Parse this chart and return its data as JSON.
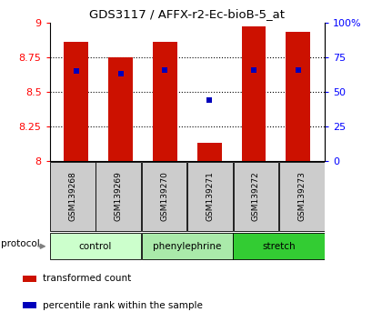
{
  "title": "GDS3117 / AFFX-r2-Ec-bioB-5_at",
  "samples": [
    "GSM139268",
    "GSM139269",
    "GSM139270",
    "GSM139271",
    "GSM139272",
    "GSM139273"
  ],
  "bar_bottom": 8.0,
  "bar_tops": [
    8.86,
    8.75,
    8.86,
    8.13,
    8.97,
    8.93
  ],
  "percentile_values": [
    8.65,
    8.63,
    8.66,
    8.44,
    8.66,
    8.66
  ],
  "ylim": [
    8.0,
    9.0
  ],
  "yticks_left": [
    8.0,
    8.25,
    8.5,
    8.75,
    9.0
  ],
  "yticks_left_labels": [
    "8",
    "8.25",
    "8.5",
    "8.75",
    "9"
  ],
  "yticks_right": [
    0,
    25,
    50,
    75,
    100
  ],
  "yticks_right_labels": [
    "0",
    "25",
    "50",
    "75",
    "100%"
  ],
  "bar_color": "#cc1100",
  "percentile_color": "#0000bb",
  "groups": [
    {
      "label": "control",
      "samples": [
        0,
        1
      ],
      "color": "#ccffcc"
    },
    {
      "label": "phenylephrine",
      "samples": [
        2,
        3
      ],
      "color": "#aaeaaa"
    },
    {
      "label": "stretch",
      "samples": [
        4,
        5
      ],
      "color": "#33cc33"
    }
  ],
  "protocol_label": "protocol",
  "legend_items": [
    {
      "label": "transformed count",
      "color": "#cc1100"
    },
    {
      "label": "percentile rank within the sample",
      "color": "#0000bb"
    }
  ],
  "background_color": "#ffffff",
  "sample_bg_color": "#cccccc",
  "grid_yticks": [
    8.25,
    8.5,
    8.75
  ],
  "bar_width": 0.55
}
